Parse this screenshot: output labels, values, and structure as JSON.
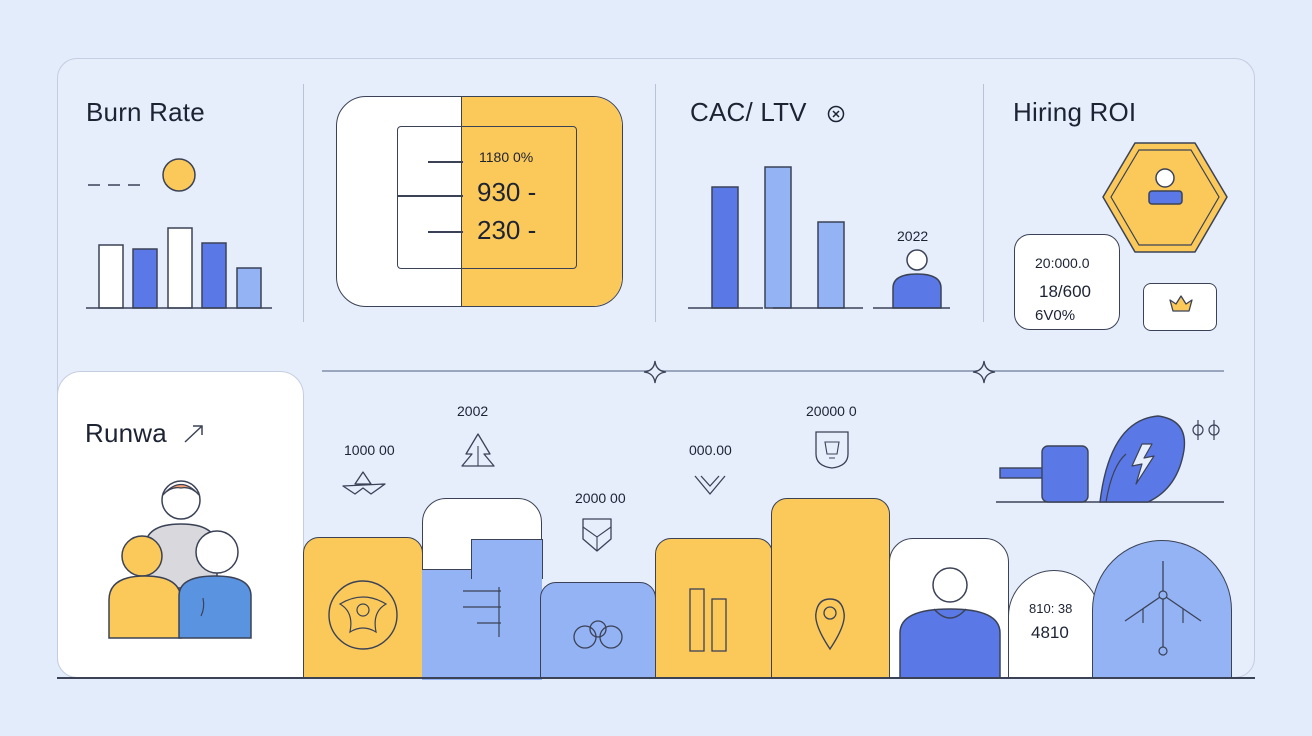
{
  "panels": {
    "burn_rate": {
      "title": "Burn Rate"
    },
    "comparison": {
      "label": "1180 0%",
      "value1": "930 -",
      "value2": "230 -"
    },
    "cac_ltv": {
      "title": "CAC/ LTV",
      "title_icon": "close-circle-icon",
      "year": "2022"
    },
    "hiring_roi": {
      "title": "Hiring ROI",
      "card_value1": "20:000.0",
      "card_value2": "18/600",
      "card_value3": "6V0%"
    },
    "runway": {
      "title": "Runwa"
    }
  },
  "bottom_labels": {
    "l1": "1000 00",
    "l2": "2002",
    "l3": "2000 00",
    "l4": "000.00",
    "l5": "20000 0",
    "card_value_a": "810: 38",
    "card_value_b": "4810"
  },
  "colors": {
    "yellow": "#fbc95a",
    "blue_dark": "#5a79e6",
    "blue_light": "#93b3f5",
    "orange": "#f5a071"
  }
}
